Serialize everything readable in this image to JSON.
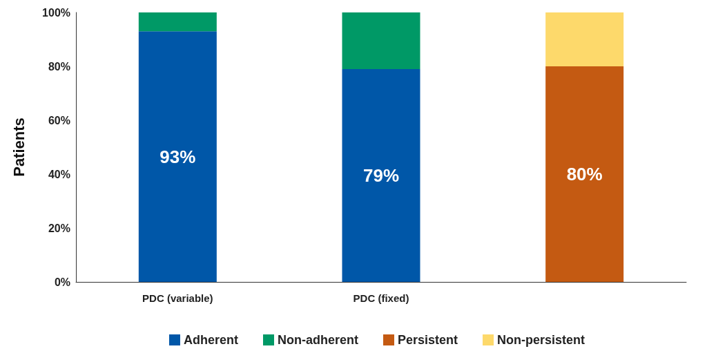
{
  "chart_data": {
    "type": "bar",
    "stacked": true,
    "ylabel": "Patients",
    "categories": [
      "PDC (variable)",
      "PDC (fixed)",
      null
    ],
    "series": [
      {
        "name": "Adherent",
        "color": "#0057a8",
        "values": [
          93,
          79,
          null
        ],
        "value_labels": [
          "93%",
          "79%",
          null
        ]
      },
      {
        "name": "Non-adherent",
        "color": "#009966",
        "values": [
          7,
          21,
          null
        ]
      },
      {
        "name": "Persistent",
        "color": "#c45a12",
        "values": [
          null,
          null,
          80
        ],
        "value_labels": [
          null,
          null,
          "80%"
        ]
      },
      {
        "name": "Non-persistent",
        "color": "#fdd96b",
        "values": [
          null,
          null,
          20
        ]
      }
    ],
    "ylim": [
      0,
      100
    ],
    "yticks": [
      {
        "value": 0,
        "label": "0%"
      },
      {
        "value": 20,
        "label": "20%"
      },
      {
        "value": 40,
        "label": "40%"
      },
      {
        "value": 60,
        "label": "60%"
      },
      {
        "value": 80,
        "label": "80%"
      },
      {
        "value": 100,
        "label": "100%"
      }
    ],
    "grid": false,
    "legend": "bottom"
  }
}
